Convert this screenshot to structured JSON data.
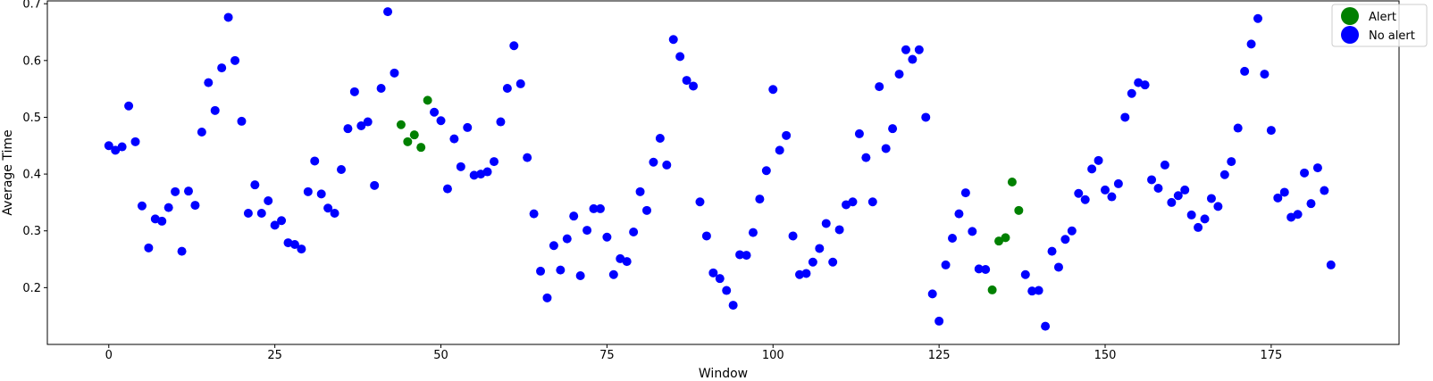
{
  "chart_data": {
    "type": "scatter",
    "xlabel": "Window",
    "ylabel": "Average Time",
    "xlim": [
      -9.25,
      194.25
    ],
    "ylim": [
      0.1,
      0.705
    ],
    "xticks": [
      0,
      25,
      50,
      75,
      100,
      125,
      150,
      175
    ],
    "yticks": [
      0.2,
      0.3,
      0.4,
      0.5,
      0.6,
      0.7
    ],
    "grid": false,
    "legend_position": "top-right",
    "series": [
      {
        "name": "Alert",
        "color": "#008000",
        "x": [
          44,
          45,
          46,
          47,
          48,
          133,
          134,
          135,
          136,
          137
        ],
        "y": [
          0.487,
          0.457,
          0.469,
          0.447,
          0.53,
          0.196,
          0.282,
          0.288,
          0.386,
          0.336
        ]
      },
      {
        "name": "No alert",
        "color": "#0000ff",
        "x": [
          0,
          1,
          2,
          3,
          4,
          5,
          6,
          7,
          8,
          9,
          10,
          11,
          12,
          13,
          14,
          15,
          16,
          17,
          18,
          19,
          20,
          21,
          22,
          23,
          24,
          25,
          26,
          27,
          28,
          29,
          30,
          31,
          32,
          33,
          34,
          35,
          36,
          37,
          38,
          39,
          40,
          41,
          42,
          43,
          49,
          50,
          51,
          52,
          53,
          54,
          55,
          56,
          57,
          58,
          59,
          60,
          61,
          62,
          63,
          64,
          65,
          66,
          67,
          68,
          69,
          70,
          71,
          72,
          73,
          74,
          75,
          76,
          77,
          78,
          79,
          80,
          81,
          82,
          83,
          84,
          85,
          86,
          87,
          88,
          89,
          90,
          91,
          92,
          93,
          94,
          95,
          96,
          97,
          98,
          99,
          100,
          101,
          102,
          103,
          104,
          105,
          106,
          107,
          108,
          109,
          110,
          111,
          112,
          113,
          114,
          115,
          116,
          117,
          118,
          119,
          120,
          121,
          122,
          123,
          124,
          125,
          126,
          127,
          128,
          129,
          130,
          131,
          132,
          138,
          139,
          140,
          141,
          142,
          143,
          144,
          145,
          146,
          147,
          148,
          149,
          150,
          151,
          152,
          153,
          154,
          155,
          156,
          157,
          158,
          159,
          160,
          161,
          162,
          163,
          164,
          165,
          166,
          167,
          168,
          169,
          170,
          171,
          172,
          173,
          174,
          175,
          176,
          177,
          178,
          179,
          180,
          181,
          182,
          183,
          184
        ],
        "y": [
          0.45,
          0.442,
          0.448,
          0.52,
          0.457,
          0.344,
          0.27,
          0.321,
          0.317,
          0.341,
          0.369,
          0.264,
          0.37,
          0.345,
          0.474,
          0.561,
          0.512,
          0.587,
          0.676,
          0.6,
          0.493,
          0.331,
          0.381,
          0.331,
          0.353,
          0.31,
          0.318,
          0.279,
          0.276,
          0.268,
          0.369,
          0.423,
          0.365,
          0.34,
          0.331,
          0.408,
          0.48,
          0.545,
          0.485,
          0.492,
          0.38,
          0.551,
          0.686,
          0.578,
          0.509,
          0.494,
          0.374,
          0.462,
          0.413,
          0.482,
          0.398,
          0.4,
          0.404,
          0.422,
          0.492,
          0.551,
          0.626,
          0.559,
          0.429,
          0.33,
          0.229,
          0.182,
          0.274,
          0.231,
          0.286,
          0.326,
          0.221,
          0.301,
          0.339,
          0.339,
          0.289,
          0.223,
          0.251,
          0.246,
          0.298,
          0.369,
          0.336,
          0.421,
          0.463,
          0.416,
          0.637,
          0.607,
          0.565,
          0.555,
          0.351,
          0.291,
          0.226,
          0.216,
          0.195,
          0.169,
          0.258,
          0.257,
          0.297,
          0.356,
          0.406,
          0.549,
          0.442,
          0.468,
          0.291,
          0.223,
          0.225,
          0.245,
          0.269,
          0.313,
          0.245,
          0.302,
          0.346,
          0.351,
          0.471,
          0.429,
          0.351,
          0.554,
          0.445,
          0.48,
          0.576,
          0.619,
          0.602,
          0.619,
          0.5,
          0.189,
          0.141,
          0.24,
          0.287,
          0.33,
          0.367,
          0.299,
          0.233,
          0.232,
          0.223,
          0.194,
          0.195,
          0.132,
          0.264,
          0.236,
          0.285,
          0.3,
          0.366,
          0.355,
          0.409,
          0.424,
          0.372,
          0.36,
          0.383,
          0.5,
          0.542,
          0.561,
          0.557,
          0.39,
          0.375,
          0.416,
          0.35,
          0.362,
          0.372,
          0.328,
          0.306,
          0.321,
          0.357,
          0.343,
          0.399,
          0.422,
          0.481,
          0.581,
          0.629,
          0.674,
          0.576,
          0.477,
          0.358,
          0.368,
          0.324,
          0.329,
          0.402,
          0.348,
          0.411,
          0.371,
          0.24
        ]
      }
    ]
  }
}
